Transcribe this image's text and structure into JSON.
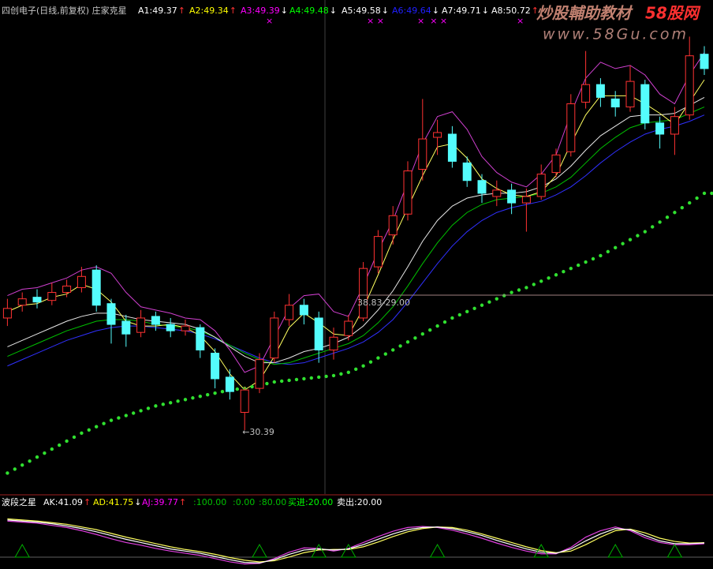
{
  "chart_data": {
    "type": "candlestick",
    "header": {
      "title": "四创电子(日线,前复权) 庄家克星",
      "items": [
        {
          "text": "A1:49.37",
          "arrow": "↑",
          "color": "#ffffff",
          "arrow_color": "#ff3232"
        },
        {
          "text": "A2:49.34",
          "arrow": "↑",
          "color": "#ffff00",
          "arrow_color": "#ff3232"
        },
        {
          "text": "A3:49.39",
          "arrow": "↓",
          "color": "#ff00ff",
          "arrow_color": "#ffffff",
          "marks": "×"
        },
        {
          "text": "A4:49.48",
          "arrow": "↓",
          "color": "#00ff00",
          "arrow_color": "#ffffff"
        },
        {
          "text": "A5:49.58",
          "arrow": "↓",
          "color": "#ffffff",
          "arrow_color": "#ffffff",
          "marks": "× ×"
        },
        {
          "text": "A6:49.64",
          "arrow": "↓",
          "color": "#2020ff",
          "arrow_color": "#ffffff",
          "marks": "×  × ×"
        },
        {
          "text": "A7:49.71",
          "arrow": "↓",
          "color": "#ffffff",
          "arrow_color": "#ffffff"
        },
        {
          "text": "A8:50.72",
          "arrow": "↑",
          "color": "#ffffff",
          "arrow_color": "#ff3232",
          "marks": "×"
        }
      ]
    },
    "watermark": {
      "brand": "炒股輔助教材",
      "site": "58股网",
      "url": "www.58Gu.com"
    },
    "ylim": [
      26.44,
      57.29
    ],
    "up_color": "#ff3232",
    "down_color": "#54fcfc",
    "candles": [
      [
        37.4,
        38.6,
        36.9,
        38.0
      ],
      [
        38.2,
        39.0,
        37.8,
        38.6
      ],
      [
        38.7,
        39.2,
        38.0,
        38.4
      ],
      [
        38.5,
        39.6,
        38.2,
        39.0
      ],
      [
        39.0,
        39.8,
        38.7,
        39.4
      ],
      [
        39.3,
        40.6,
        39.0,
        40.0
      ],
      [
        40.4,
        40.7,
        37.8,
        38.2
      ],
      [
        38.3,
        38.6,
        35.8,
        37.0
      ],
      [
        37.2,
        37.6,
        35.6,
        36.4
      ],
      [
        36.5,
        37.9,
        36.2,
        37.4
      ],
      [
        37.5,
        37.8,
        36.6,
        37.0
      ],
      [
        37.0,
        37.4,
        36.2,
        36.6
      ],
      [
        36.6,
        37.3,
        36.3,
        36.9
      ],
      [
        36.8,
        37.0,
        34.9,
        35.4
      ],
      [
        35.2,
        35.5,
        33.0,
        33.6
      ],
      [
        33.7,
        34.2,
        32.3,
        32.8
      ],
      [
        31.5,
        33.1,
        30.39,
        32.9
      ],
      [
        33.0,
        35.2,
        32.7,
        34.8
      ],
      [
        34.9,
        37.8,
        34.6,
        37.4
      ],
      [
        37.3,
        38.9,
        36.9,
        38.2
      ],
      [
        38.2,
        38.6,
        37.0,
        37.6
      ],
      [
        37.4,
        37.8,
        34.6,
        35.4
      ],
      [
        35.4,
        36.8,
        34.8,
        36.2
      ],
      [
        36.3,
        37.6,
        36.0,
        37.2
      ],
      [
        37.4,
        40.9,
        37.2,
        40.5
      ],
      [
        40.6,
        42.9,
        40.2,
        42.5
      ],
      [
        42.6,
        44.4,
        42.0,
        43.8
      ],
      [
        43.9,
        47.2,
        43.5,
        46.6
      ],
      [
        46.7,
        51.1,
        46.0,
        48.6
      ],
      [
        48.7,
        49.8,
        47.6,
        49.0
      ],
      [
        48.9,
        49.4,
        46.8,
        47.2
      ],
      [
        47.1,
        47.5,
        45.6,
        46.0
      ],
      [
        46.0,
        46.4,
        44.6,
        45.2
      ],
      [
        45.0,
        46.0,
        44.4,
        45.4
      ],
      [
        45.4,
        45.8,
        43.9,
        44.6
      ],
      [
        44.6,
        45.5,
        42.8,
        45.0
      ],
      [
        45.0,
        47.0,
        44.8,
        46.4
      ],
      [
        46.5,
        48.0,
        46.2,
        47.6
      ],
      [
        47.8,
        51.4,
        47.5,
        50.8
      ],
      [
        50.9,
        54.1,
        50.5,
        52.0
      ],
      [
        52.0,
        52.4,
        50.6,
        51.2
      ],
      [
        51.1,
        51.6,
        50.0,
        50.6
      ],
      [
        50.6,
        53.2,
        50.3,
        52.2
      ],
      [
        52.0,
        52.3,
        49.2,
        49.6
      ],
      [
        49.6,
        50.0,
        48.0,
        48.9
      ],
      [
        48.9,
        50.6,
        47.6,
        50.0
      ],
      [
        50.1,
        55.0,
        49.8,
        53.8
      ],
      [
        53.9,
        54.4,
        52.6,
        53.0
      ]
    ],
    "lines": [
      {
        "color": "#3030ff",
        "values": [
          34.4,
          34.8,
          35.2,
          35.6,
          36.0,
          36.3,
          36.6,
          36.8,
          36.9,
          36.9,
          36.8,
          36.7,
          36.6,
          36.4,
          36.1,
          35.7,
          35.3,
          34.9,
          34.6,
          34.5,
          34.6,
          34.9,
          35.2,
          35.5,
          35.9,
          36.5,
          37.3,
          38.4,
          39.6,
          40.8,
          41.9,
          42.8,
          43.5,
          44.0,
          44.3,
          44.5,
          44.7,
          45.1,
          45.6,
          46.3,
          47.1,
          47.8,
          48.4,
          48.9,
          49.2,
          49.4,
          49.7,
          50.1
        ]
      },
      {
        "color": "#00c000",
        "values": [
          35.0,
          35.4,
          35.8,
          36.2,
          36.6,
          36.9,
          37.2,
          37.3,
          37.3,
          37.2,
          37.0,
          36.9,
          36.8,
          36.6,
          36.2,
          35.7,
          35.2,
          34.8,
          34.5,
          34.6,
          34.9,
          35.2,
          35.5,
          35.8,
          36.3,
          37.1,
          38.1,
          39.4,
          40.8,
          42.1,
          43.2,
          44.0,
          44.5,
          44.8,
          44.9,
          45.0,
          45.2,
          45.6,
          46.2,
          47.1,
          48.0,
          48.7,
          49.3,
          49.6,
          49.7,
          49.8,
          50.2,
          50.6
        ]
      },
      {
        "color": "#e8e8e8",
        "values": [
          35.6,
          36.0,
          36.4,
          36.8,
          37.2,
          37.5,
          37.7,
          37.7,
          37.5,
          37.3,
          37.2,
          37.1,
          37.0,
          36.7,
          36.2,
          35.6,
          35.0,
          34.6,
          34.6,
          34.9,
          35.3,
          35.5,
          35.8,
          36.2,
          36.9,
          37.9,
          39.1,
          40.6,
          42.2,
          43.5,
          44.4,
          44.9,
          45.1,
          45.2,
          45.2,
          45.3,
          45.6,
          46.1,
          46.9,
          47.9,
          48.8,
          49.4,
          50.0,
          50.1,
          50.1,
          50.2,
          50.7,
          51.2
        ]
      },
      {
        "color": "#ffff60",
        "values": [
          37.8,
          38.2,
          38.3,
          38.7,
          38.9,
          39.5,
          39.2,
          38.4,
          37.2,
          36.9,
          36.9,
          37.0,
          36.8,
          36.3,
          35.3,
          33.9,
          32.9,
          33.5,
          35.0,
          36.8,
          37.7,
          37.1,
          36.4,
          36.3,
          38.0,
          40.1,
          42.3,
          44.3,
          46.3,
          48.1,
          48.3,
          47.4,
          46.1,
          45.5,
          45.1,
          45.0,
          45.3,
          46.3,
          48.3,
          50.1,
          51.3,
          51.3,
          51.3,
          50.8,
          50.2,
          49.5,
          50.9,
          52.3
        ]
      },
      {
        "color": "#d040d0",
        "values": [
          38.8,
          39.2,
          39.3,
          39.6,
          39.9,
          40.4,
          40.6,
          40.2,
          39.0,
          38.1,
          37.9,
          37.7,
          37.4,
          37.3,
          36.6,
          35.4,
          34.0,
          34.4,
          36.2,
          38.0,
          38.8,
          38.9,
          37.8,
          37.5,
          39.4,
          41.6,
          43.5,
          45.9,
          48.3,
          50.0,
          50.3,
          49.2,
          47.5,
          46.5,
          45.9,
          45.6,
          46.4,
          47.6,
          50.2,
          52.4,
          53.4,
          53.0,
          53.2,
          52.6,
          51.4,
          50.8,
          52.6,
          54.0
        ]
      }
    ],
    "dots": {
      "color": "#30e030",
      "values": [
        27.7,
        28.2,
        28.7,
        29.2,
        29.7,
        30.2,
        30.6,
        31.0,
        31.3,
        31.6,
        31.9,
        32.1,
        32.3,
        32.5,
        32.7,
        32.9,
        33.0,
        33.2,
        33.4,
        33.5,
        33.6,
        33.7,
        33.8,
        34.0,
        34.4,
        34.9,
        35.4,
        35.9,
        36.4,
        36.9,
        37.4,
        37.8,
        38.2,
        38.6,
        39.0,
        39.3,
        39.7,
        40.1,
        40.5,
        40.9,
        41.3,
        41.8,
        42.3,
        42.8,
        43.4,
        44.0,
        44.6,
        45.2
      ]
    },
    "annotations": [
      {
        "label": "38.83-29.00",
        "value": 38.83
      },
      {
        "label": "←30.39",
        "value": 30.39
      }
    ],
    "lower": {
      "items": [
        {
          "text": "波段之星",
          "color": "#ffffff"
        },
        {
          "text": "AK:41.09",
          "arrow": "↑",
          "color": "#ffffff",
          "arrow_color": "#ff3232"
        },
        {
          "text": "AD:41.75",
          "arrow": "↓",
          "color": "#ffff00",
          "arrow_color": "#ffffff"
        },
        {
          "text": "AJ:39.77",
          "arrow": "↑",
          "color": "#ff00ff",
          "arrow_color": "#ff3232"
        },
        {
          "text": ":100.00",
          "color": "#00c000"
        },
        {
          "text": ":0.00",
          "color": "#00c000"
        },
        {
          "text": ":80.00",
          "color": "#00c000"
        },
        {
          "text": "买进:20.00",
          "color": "#00ff00"
        },
        {
          "text": "卖出:20.00",
          "color": "#ffffff"
        }
      ],
      "ylim": [
        0,
        100
      ],
      "series": [
        {
          "name": "AJ",
          "color": "#e040e0",
          "values": [
            82,
            80,
            78,
            74,
            70,
            64,
            57,
            49,
            42,
            37,
            31,
            26,
            22,
            18,
            12,
            6,
            2,
            3,
            12,
            24,
            32,
            31,
            26,
            31,
            42,
            53,
            63,
            70,
            72,
            70,
            65,
            58,
            50,
            41,
            33,
            26,
            21,
            21,
            33,
            52,
            64,
            71,
            64,
            51,
            42,
            38,
            38,
            39.77
          ]
        },
        {
          "name": "AD",
          "color": "#ffff60",
          "values": [
            86,
            84,
            82,
            79,
            76,
            71,
            66,
            59,
            52,
            46,
            40,
            34,
            29,
            25,
            20,
            14,
            9,
            6,
            8,
            15,
            23,
            28,
            29,
            29,
            34,
            43,
            53,
            62,
            68,
            71,
            70,
            65,
            58,
            50,
            42,
            34,
            27,
            23,
            26,
            38,
            52,
            64,
            67,
            60,
            50,
            44,
            41,
            41.75
          ]
        },
        {
          "name": "AK",
          "color": "#ffffff",
          "values": [
            84,
            82,
            80,
            77,
            73,
            68,
            62,
            55,
            48,
            42,
            36,
            30,
            26,
            22,
            16,
            10,
            5,
            4,
            10,
            20,
            28,
            30,
            28,
            30,
            38,
            48,
            58,
            66,
            70,
            71,
            68,
            62,
            55,
            46,
            38,
            30,
            24,
            22,
            30,
            45,
            58,
            68,
            66,
            55,
            45,
            40,
            40,
            41.09
          ]
        }
      ],
      "signal_color": "#00b000",
      "buy_signals": [
        1,
        17,
        21,
        23,
        29,
        36,
        41,
        45
      ]
    }
  }
}
